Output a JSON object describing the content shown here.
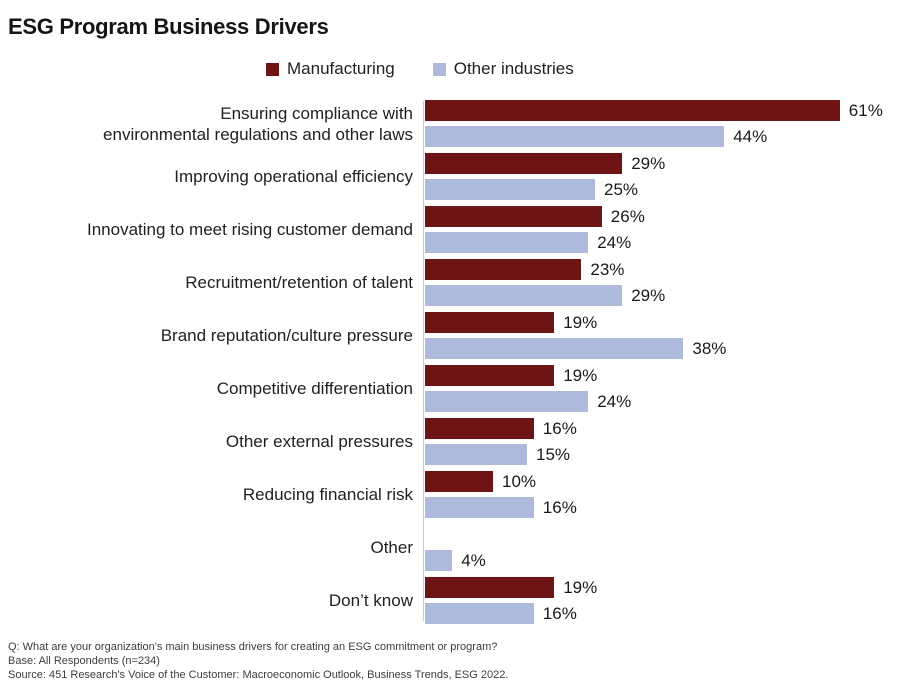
{
  "title": "ESG Program Business Drivers",
  "legend": [
    {
      "label": "Manufacturing",
      "color": "#6e1414"
    },
    {
      "label": "Other industries",
      "color": "#adbadc"
    }
  ],
  "chart_data": {
    "type": "bar",
    "orientation": "horizontal",
    "title": "ESG Program Business Drivers",
    "value_suffix": "%",
    "xlim": [
      0,
      62
    ],
    "grid": false,
    "legend_position": "top",
    "categories": [
      "Ensuring compliance with\nenvironmental regulations and other laws",
      "Improving operational efficiency",
      "Innovating to meet rising customer demand",
      "Recruitment/retention of talent",
      "Brand reputation/culture pressure",
      "Competitive differentiation",
      "Other external pressures",
      "Reducing financial risk",
      "Other",
      "Don’t know"
    ],
    "series": [
      {
        "name": "Manufacturing",
        "color": "#6e1414",
        "values": [
          61,
          29,
          26,
          23,
          19,
          19,
          16,
          10,
          null,
          19
        ]
      },
      {
        "name": "Other industries",
        "color": "#adbadc",
        "values": [
          44,
          25,
          24,
          29,
          38,
          24,
          15,
          16,
          4,
          16
        ]
      }
    ]
  },
  "footer": {
    "lines": [
      "Q: What are your organization's main business drivers for creating an ESG commitment or program?",
      "Base: All Respondents (n=234)",
      "Source: 451 Research's Voice of the Customer: Macroeconomic Outlook, Business Trends, ESG 2022."
    ]
  }
}
